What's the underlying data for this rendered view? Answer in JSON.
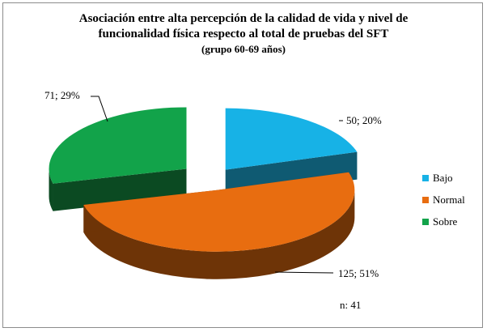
{
  "chart_data": {
    "type": "pie",
    "title_lines": [
      "Asociación entre alta percepción de la calidad de vida y nivel de",
      "funcionalidad física respecto al total de pruebas del SFT",
      "(grupo 60-69 años)"
    ],
    "slices": [
      {
        "name": "Bajo",
        "value": 50,
        "percent": "20%",
        "label": "50; 20%",
        "color": "#17b2e6",
        "side_color": "#0f5a72"
      },
      {
        "name": "Normal",
        "value": 125,
        "percent": "51%",
        "label": "125; 51%",
        "color": "#e86d10",
        "side_color": "#6e3407"
      },
      {
        "name": "Sobre",
        "value": 71,
        "percent": "29%",
        "label": "71; 29%",
        "color": "#12a34a",
        "side_color": "#0b4a22"
      }
    ],
    "legend_position": "right",
    "note": "n: 41",
    "exploded": true,
    "three_d": true
  }
}
